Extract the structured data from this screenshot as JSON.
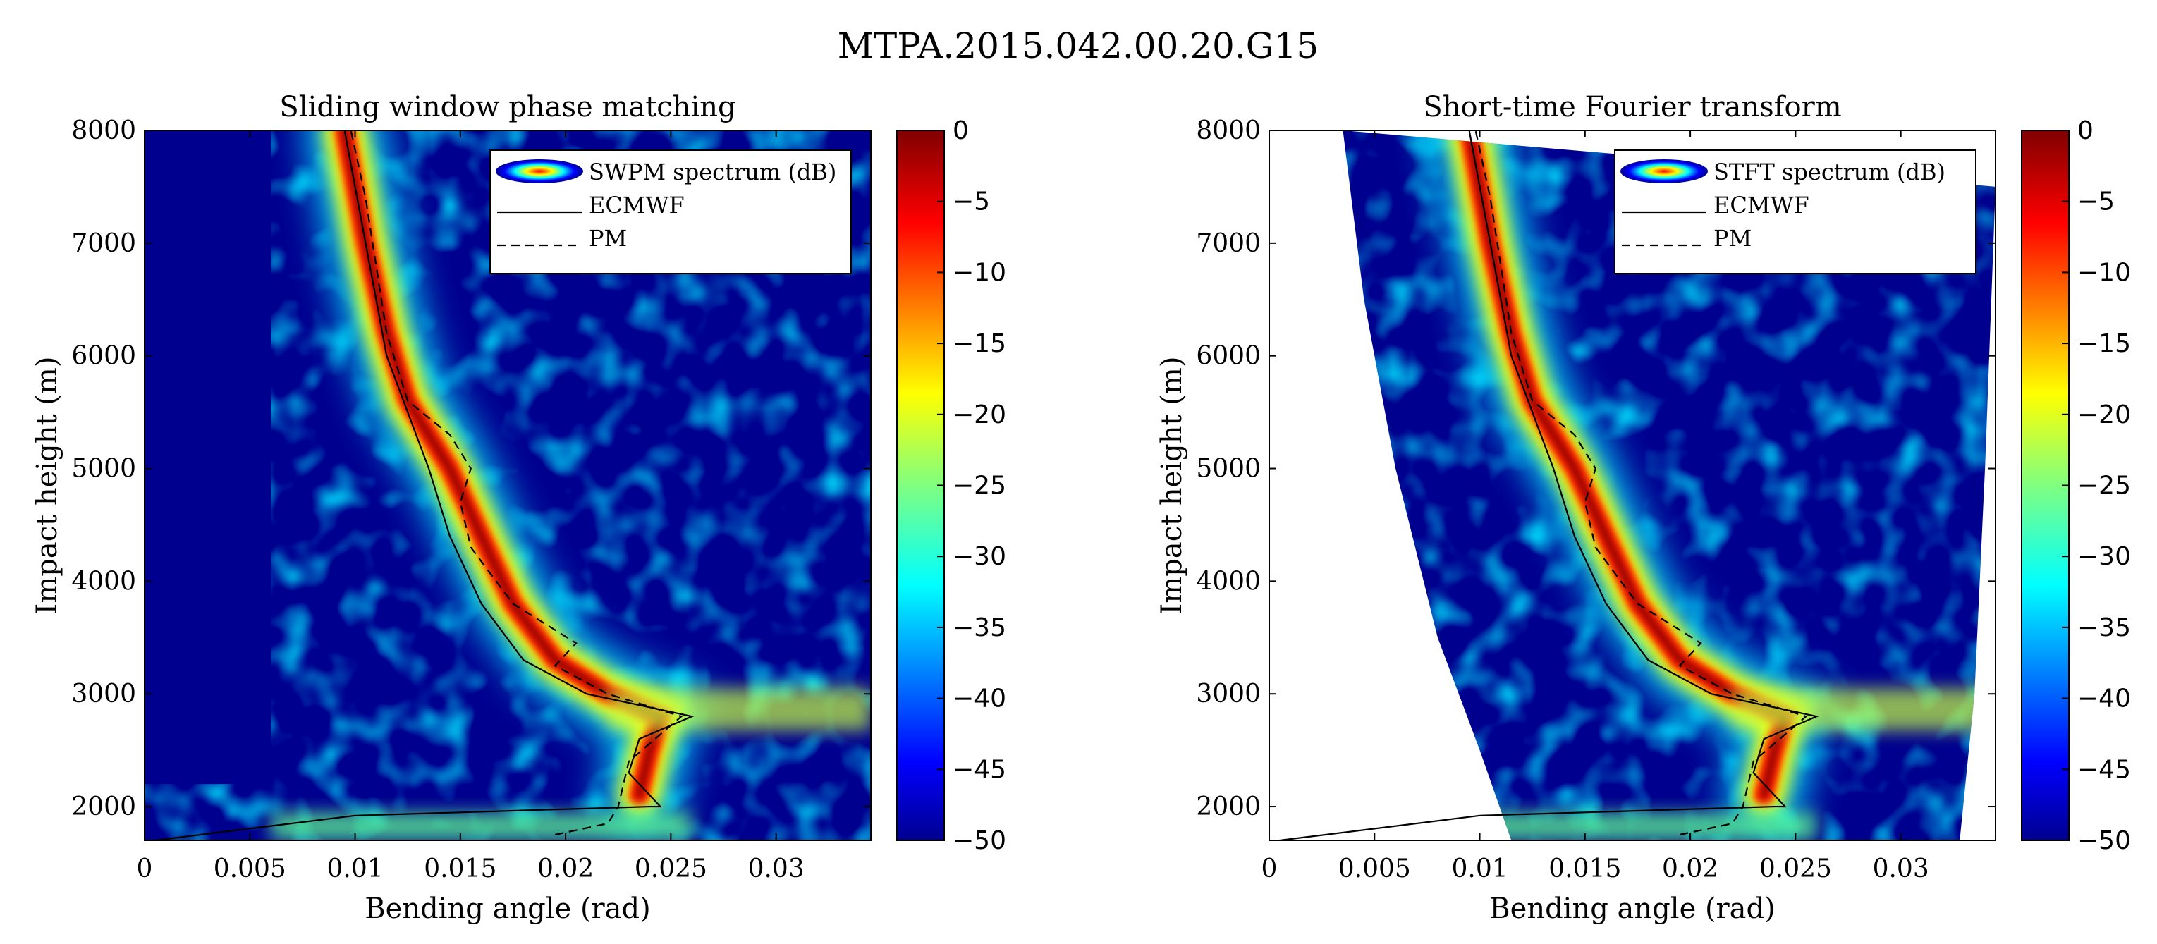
{
  "figure_title": "MTPA.2015.042.00.20.G15",
  "colors": {
    "background_low": "#00008f",
    "ridge_high": "#8b0000",
    "axis": "#000000"
  },
  "chart_data": [
    {
      "type": "heatmap",
      "title": "Sliding window phase matching",
      "xlabel": "Bending angle (rad)",
      "ylabel": "Impact height (m)",
      "xlim": [
        0,
        0.0345
      ],
      "ylim": [
        1700,
        8000
      ],
      "xticks": [
        "0",
        "0.005",
        "0.01",
        "0.015",
        "0.02",
        "0.025",
        "0.03"
      ],
      "xtick_values": [
        0,
        0.005,
        0.01,
        0.015,
        0.02,
        0.025,
        0.03
      ],
      "yticks": [
        "2000",
        "3000",
        "4000",
        "5000",
        "6000",
        "7000",
        "8000"
      ],
      "ytick_values": [
        2000,
        3000,
        4000,
        5000,
        6000,
        7000,
        8000
      ],
      "colorbar": {
        "min": -50,
        "max": 0,
        "ticks": [
          "0",
          "−5",
          "−10",
          "−15",
          "−20",
          "−25",
          "−30",
          "−35",
          "−40",
          "−45",
          "−50"
        ],
        "tick_values": [
          0,
          -5,
          -10,
          -15,
          -20,
          -25,
          -30,
          -35,
          -40,
          -45,
          -50
        ]
      },
      "legend": {
        "position": "top-right",
        "entries": [
          "SWPM spectrum (dB)",
          "ECMWF",
          "PM"
        ]
      },
      "series": [
        {
          "name": "ECMWF",
          "style": "solid",
          "points": [
            [
              0.0005,
              1700
            ],
            [
              0.01,
              1920
            ],
            [
              0.024,
              2000
            ],
            [
              0.0245,
              2000
            ],
            [
              0.023,
              2300
            ],
            [
              0.0235,
              2600
            ],
            [
              0.026,
              2800
            ],
            [
              0.021,
              3000
            ],
            [
              0.018,
              3300
            ],
            [
              0.016,
              3800
            ],
            [
              0.0145,
              4400
            ],
            [
              0.0135,
              5000
            ],
            [
              0.0125,
              5500
            ],
            [
              0.0115,
              6000
            ],
            [
              0.011,
              6500
            ],
            [
              0.0105,
              7000
            ],
            [
              0.01,
              7500
            ],
            [
              0.0095,
              8000
            ]
          ]
        },
        {
          "name": "PM",
          "style": "dashed",
          "points": [
            [
              0.0195,
              1750
            ],
            [
              0.022,
              1850
            ],
            [
              0.0225,
              2000
            ],
            [
              0.023,
              2400
            ],
            [
              0.0255,
              2800
            ],
            [
              0.022,
              3000
            ],
            [
              0.0195,
              3250
            ],
            [
              0.0205,
              3450
            ],
            [
              0.0175,
              3800
            ],
            [
              0.0155,
              4300
            ],
            [
              0.015,
              4700
            ],
            [
              0.0155,
              5000
            ],
            [
              0.0145,
              5300
            ],
            [
              0.0125,
              5600
            ],
            [
              0.0115,
              6200
            ],
            [
              0.011,
              6800
            ],
            [
              0.0105,
              7400
            ],
            [
              0.0098,
              8000
            ]
          ]
        }
      ],
      "ridge": [
        [
          0.0095,
          8000
        ],
        [
          0.0105,
          7000
        ],
        [
          0.0115,
          6200
        ],
        [
          0.0125,
          5600
        ],
        [
          0.0145,
          5000
        ],
        [
          0.016,
          4400
        ],
        [
          0.0175,
          3800
        ],
        [
          0.0195,
          3300
        ],
        [
          0.022,
          3000
        ],
        [
          0.0245,
          2800
        ],
        [
          0.024,
          2500
        ],
        [
          0.0235,
          2100
        ]
      ]
    },
    {
      "type": "heatmap",
      "title": "Short-time Fourier transform",
      "xlabel": "Bending angle (rad)",
      "ylabel": "Impact height (m)",
      "xlim": [
        0,
        0.0345
      ],
      "ylim": [
        1700,
        8000
      ],
      "xticks": [
        "0",
        "0.005",
        "0.01",
        "0.015",
        "0.02",
        "0.025",
        "0.03"
      ],
      "xtick_values": [
        0,
        0.005,
        0.01,
        0.015,
        0.02,
        0.025,
        0.03
      ],
      "yticks": [
        "2000",
        "3000",
        "4000",
        "5000",
        "6000",
        "7000",
        "8000"
      ],
      "ytick_values": [
        2000,
        3000,
        4000,
        5000,
        6000,
        7000,
        8000
      ],
      "colorbar": {
        "min": -50,
        "max": 0,
        "ticks": [
          "0",
          "−5",
          "−10",
          "−15",
          "−20",
          "−25",
          "−30",
          "−35",
          "−40",
          "−45",
          "−50"
        ],
        "tick_values": [
          0,
          -5,
          -10,
          -15,
          -20,
          -25,
          -30,
          -35,
          -40,
          -45,
          -50
        ]
      },
      "legend": {
        "position": "top-right",
        "entries": [
          "STFT spectrum (dB)",
          "ECMWF",
          "PM"
        ]
      },
      "series": [
        {
          "name": "ECMWF",
          "style": "solid",
          "points": [
            [
              0.0005,
              1700
            ],
            [
              0.01,
              1920
            ],
            [
              0.024,
              2000
            ],
            [
              0.0245,
              2000
            ],
            [
              0.023,
              2300
            ],
            [
              0.0235,
              2600
            ],
            [
              0.026,
              2800
            ],
            [
              0.021,
              3000
            ],
            [
              0.018,
              3300
            ],
            [
              0.016,
              3800
            ],
            [
              0.0145,
              4400
            ],
            [
              0.0135,
              5000
            ],
            [
              0.0125,
              5500
            ],
            [
              0.0115,
              6000
            ],
            [
              0.011,
              6500
            ],
            [
              0.0105,
              7000
            ],
            [
              0.01,
              7500
            ],
            [
              0.0095,
              8000
            ]
          ]
        },
        {
          "name": "PM",
          "style": "dashed",
          "points": [
            [
              0.0195,
              1750
            ],
            [
              0.022,
              1850
            ],
            [
              0.0225,
              2000
            ],
            [
              0.023,
              2400
            ],
            [
              0.0255,
              2800
            ],
            [
              0.022,
              3000
            ],
            [
              0.0195,
              3250
            ],
            [
              0.0205,
              3450
            ],
            [
              0.0175,
              3800
            ],
            [
              0.0155,
              4300
            ],
            [
              0.015,
              4700
            ],
            [
              0.0155,
              5000
            ],
            [
              0.0145,
              5300
            ],
            [
              0.0125,
              5600
            ],
            [
              0.0115,
              6200
            ],
            [
              0.011,
              6800
            ],
            [
              0.0105,
              7400
            ],
            [
              0.0098,
              8000
            ]
          ]
        }
      ],
      "ridge": [
        [
          0.0095,
          8000
        ],
        [
          0.0105,
          7000
        ],
        [
          0.0115,
          6200
        ],
        [
          0.0125,
          5600
        ],
        [
          0.0145,
          5000
        ],
        [
          0.016,
          4400
        ],
        [
          0.0175,
          3800
        ],
        [
          0.0195,
          3300
        ],
        [
          0.022,
          3000
        ],
        [
          0.0245,
          2800
        ],
        [
          0.024,
          2500
        ],
        [
          0.0235,
          2100
        ]
      ],
      "valid_region": {
        "left_boundary": [
          [
            0.0035,
            8000
          ],
          [
            0.0045,
            6500
          ],
          [
            0.006,
            5000
          ],
          [
            0.008,
            3500
          ],
          [
            0.01,
            2500
          ],
          [
            0.0115,
            1700
          ]
        ],
        "right_boundary": [
          [
            0.0345,
            7500
          ],
          [
            0.034,
            5000
          ],
          [
            0.0335,
            3000
          ],
          [
            0.0328,
            1700
          ]
        ]
      }
    }
  ]
}
